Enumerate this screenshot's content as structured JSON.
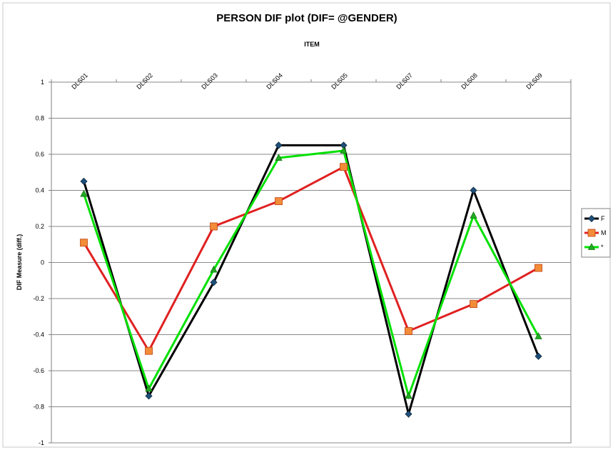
{
  "chart_data": {
    "type": "line",
    "title": "PERSON DIF plot (DIF= @GENDER)",
    "xlabel": "ITEM",
    "ylabel": "DIF Measure (diff.)",
    "categories": [
      "DLS01",
      "DLS02",
      "DLS03",
      "DLS04",
      "DLS05",
      "DLS07",
      "DLS08",
      "DLS09"
    ],
    "ylim": [
      -1,
      1
    ],
    "yticks": [
      "1",
      "0.8",
      "0.6",
      "0.4",
      "0.2",
      "0",
      "-0.2",
      "-0.4",
      "-0.6",
      "-0.8",
      "-1"
    ],
    "grid": true,
    "legend": "right",
    "series": [
      {
        "name": "F",
        "color": "#000000",
        "marker": "diamond",
        "marker_color": "#1f4e79",
        "values": [
          0.45,
          -0.74,
          -0.11,
          0.65,
          0.65,
          -0.84,
          0.4,
          -0.52
        ]
      },
      {
        "name": "M",
        "color": "#e02020",
        "marker": "square",
        "marker_color": "#f28c38",
        "values": [
          0.11,
          -0.49,
          0.2,
          0.34,
          0.53,
          -0.38,
          -0.23,
          -0.03
        ]
      },
      {
        "name": "*",
        "color": "#00e000",
        "marker": "triangle",
        "marker_color": "#22aa22",
        "values": [
          0.38,
          -0.7,
          -0.04,
          0.58,
          0.62,
          -0.74,
          0.26,
          -0.41
        ]
      }
    ]
  }
}
